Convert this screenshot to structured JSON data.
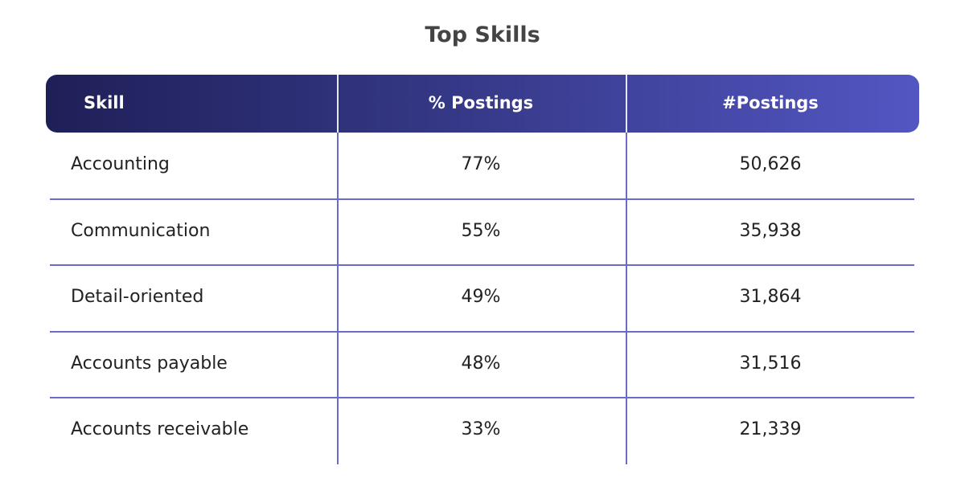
{
  "header": {
    "title": "Top Skills"
  },
  "table": {
    "columns": [
      "Skill",
      "% Postings",
      "#Postings"
    ],
    "rows": [
      [
        "Accounting",
        "77%",
        "50,626"
      ],
      [
        "Communication",
        "55%",
        "35,938"
      ],
      [
        "Detail-oriented",
        "49%",
        "31,864"
      ],
      [
        "Accounts payable",
        "48%",
        "31,516"
      ],
      [
        "Accounts receivable",
        "33%",
        "21,339"
      ]
    ]
  }
}
